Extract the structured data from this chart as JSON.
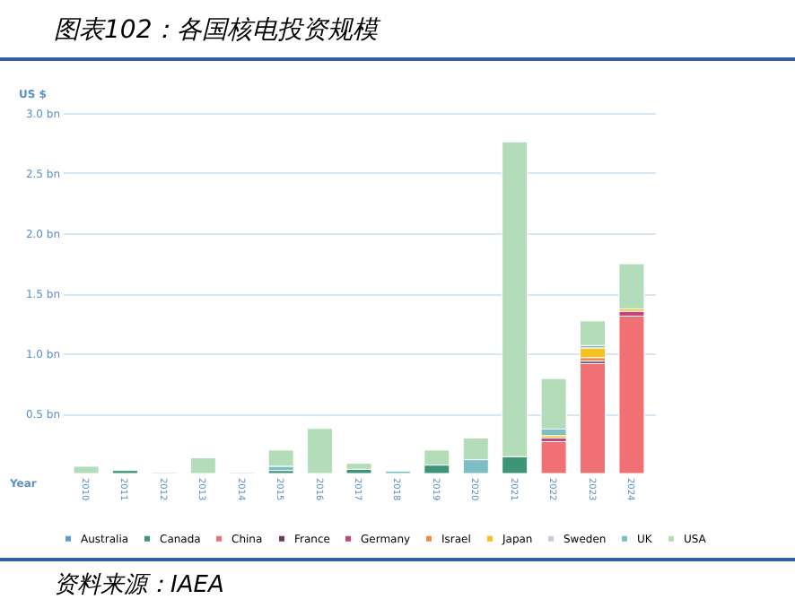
{
  "chart_data": {
    "type": "bar",
    "title": "图表102：各国核电投资规模",
    "xlabel": "Year",
    "ylabel": "US $",
    "annotations": [
      "资料来源：IAEA"
    ],
    "categories": [
      "2010",
      "2011",
      "2012",
      "2013",
      "2014",
      "2015",
      "2016",
      "2017",
      "2018",
      "2019",
      "2020",
      "2021",
      "2022",
      "2023",
      "2024"
    ],
    "stacked": true,
    "ylim": [
      0,
      3
    ],
    "yticks": [
      {
        "value": 0.5,
        "label": "0.5 bn"
      },
      {
        "value": 1,
        "label": "1.0 bn"
      },
      {
        "value": 1.5,
        "label": "1.5 bn"
      },
      {
        "value": 2,
        "label": "2.0 bn"
      },
      {
        "value": 2.5,
        "label": "2.5 bn"
      },
      {
        "value": 3,
        "label": "3.0 bn"
      }
    ],
    "grid": "y",
    "legend": "bottom",
    "series": [
      {
        "name": "Australia",
        "color": "#5b9bd5",
        "values": [
          null,
          null,
          null,
          null,
          null,
          null,
          null,
          null,
          null,
          null,
          null,
          null,
          null,
          null,
          null
        ]
      },
      {
        "name": "Canada",
        "color": "#3d9477",
        "values": [
          null,
          0.025,
          null,
          null,
          null,
          0.025,
          null,
          0.035,
          null,
          0.07,
          null,
          0.14,
          null,
          null,
          null
        ]
      },
      {
        "name": "China",
        "color": "#f07073",
        "values": [
          null,
          null,
          null,
          null,
          null,
          null,
          null,
          null,
          null,
          null,
          null,
          null,
          0.265,
          0.915,
          1.31
        ]
      },
      {
        "name": "France",
        "color": "#6b3a5a",
        "values": [
          null,
          null,
          null,
          null,
          null,
          null,
          null,
          null,
          null,
          null,
          null,
          null,
          null,
          0.02,
          null
        ]
      },
      {
        "name": "Germany",
        "color": "#c0457a",
        "values": [
          null,
          null,
          null,
          null,
          null,
          null,
          null,
          null,
          null,
          null,
          null,
          null,
          0.03,
          null,
          0.04
        ]
      },
      {
        "name": "Israel",
        "color": "#f08a4a",
        "values": [
          null,
          null,
          null,
          null,
          null,
          null,
          null,
          null,
          null,
          null,
          null,
          null,
          null,
          0.03,
          null
        ]
      },
      {
        "name": "Japan",
        "color": "#f5c020",
        "values": [
          null,
          null,
          null,
          null,
          null,
          null,
          null,
          null,
          null,
          null,
          null,
          null,
          0.02,
          0.08,
          0.02
        ]
      },
      {
        "name": "Sweden",
        "color": "#d3c3de",
        "values": [
          null,
          null,
          null,
          null,
          null,
          null,
          null,
          null,
          null,
          null,
          null,
          null,
          null,
          null,
          null
        ]
      },
      {
        "name": "UK",
        "color": "#7bbfc4",
        "values": [
          null,
          null,
          null,
          null,
          null,
          0.035,
          null,
          null,
          0.02,
          null,
          0.115,
          null,
          0.055,
          0.02,
          null
        ]
      },
      {
        "name": "USA",
        "color": "#b3dcb9",
        "values": [
          0.06,
          null,
          0.01,
          0.13,
          0.01,
          0.135,
          0.375,
          0.05,
          null,
          0.125,
          0.18,
          2.62,
          0.42,
          0.205,
          0.375
        ]
      }
    ]
  }
}
